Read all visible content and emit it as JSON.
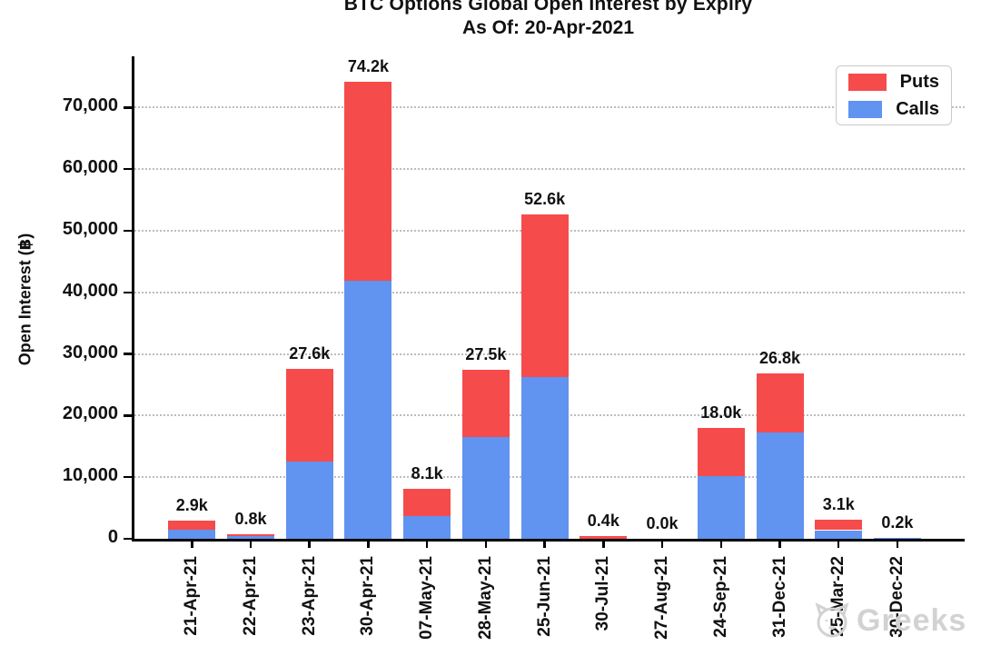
{
  "title": {
    "line1": "BTC Options Global Open Interest by Expiry",
    "line2": "As Of: 20-Apr-2021"
  },
  "y_axis": {
    "label": "Open Interest (฿)",
    "tick_labels": [
      "0",
      "10,000",
      "20,000",
      "30,000",
      "40,000",
      "50,000",
      "60,000",
      "70,000"
    ]
  },
  "legend": {
    "items": [
      {
        "label": "Puts",
        "color": "#f64b4b"
      },
      {
        "label": "Calls",
        "color": "#6193f0"
      }
    ]
  },
  "watermark": {
    "text": "Greeks",
    "logo": "cat-logo-icon"
  },
  "colors": {
    "puts_red": "#f64b4b",
    "calls_blue": "#6193f0",
    "gridline": "#bdbdbd",
    "axis": "#000000"
  },
  "chart_data": {
    "type": "bar",
    "stacked": true,
    "title": "BTC Options Global Open Interest by Expiry",
    "subtitle": "As Of: 20-Apr-2021",
    "xlabel": "",
    "ylabel": "Open Interest (฿)",
    "ylim": [
      0,
      78000
    ],
    "yticks": [
      0,
      10000,
      20000,
      30000,
      40000,
      50000,
      60000,
      70000
    ],
    "grid": "dotted horizontal",
    "legend_position": "upper right",
    "categories": [
      "21-Apr-21",
      "22-Apr-21",
      "23-Apr-21",
      "30-Apr-21",
      "07-May-21",
      "28-May-21",
      "25-Jun-21",
      "30-Jul-21",
      "27-Aug-21",
      "24-Sep-21",
      "31-Dec-21",
      "25-Mar-22",
      "30-Dec-22"
    ],
    "series": [
      {
        "name": "Calls",
        "color": "#6193f0",
        "values": [
          1500,
          400,
          12500,
          41900,
          3700,
          16500,
          26200,
          0,
          0,
          10200,
          17300,
          1400,
          200
        ]
      },
      {
        "name": "Puts",
        "color": "#f64b4b",
        "values": [
          1400,
          400,
          15100,
          32300,
          4400,
          11000,
          26400,
          400,
          0,
          7800,
          9500,
          1700,
          0
        ]
      }
    ],
    "totals": [
      2900,
      800,
      27600,
      74200,
      8100,
      27500,
      52600,
      400,
      0,
      18000,
      26800,
      3100,
      200
    ],
    "totals_labels": [
      "2.9k",
      "0.8k",
      "27.6k",
      "74.2k",
      "8.1k",
      "27.5k",
      "52.6k",
      "0.4k",
      "0.0k",
      "18.0k",
      "26.8k",
      "3.1k",
      "0.2k"
    ]
  }
}
